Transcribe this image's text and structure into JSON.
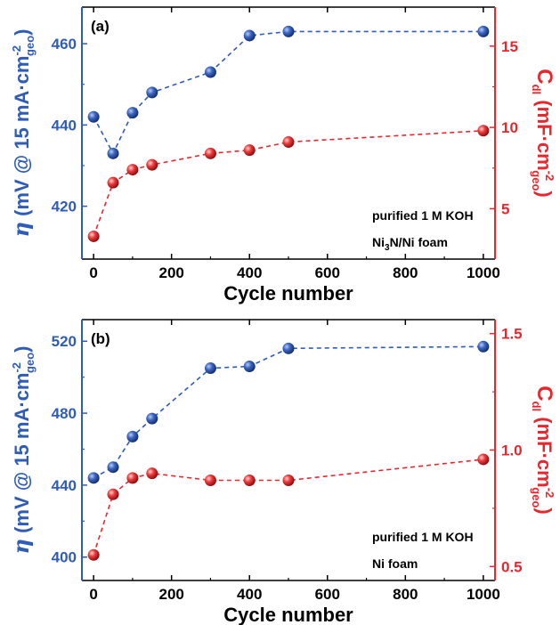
{
  "colors": {
    "left_series": "#2E5CB8",
    "right_series": "#E8262E",
    "axis": "#000000"
  },
  "chart_data": [
    {
      "type": "scatter",
      "panel_label": "(a)",
      "xlabel": "Cycle number",
      "ylabel_left": {
        "symbol": "η",
        "text": " (mV @ 15 mA·cm",
        "sup": "-2",
        "sub": "geo",
        "close": ")"
      },
      "ylabel_right": {
        "base": "C",
        "base_sub": "dl",
        "text": " (mF·cm",
        "sup": "-2",
        "sub": "geo",
        "close": ")"
      },
      "xlim": [
        -30,
        1030
      ],
      "xticks": [
        0,
        200,
        400,
        600,
        800,
        1000
      ],
      "ylim_left": [
        407,
        469
      ],
      "yticks_left": [
        420,
        440,
        460
      ],
      "ylim_right": [
        1.9,
        17.4
      ],
      "yticks_right": [
        5,
        10,
        15
      ],
      "annotations": [
        "purified 1 M KOH",
        "Ni3N/Ni foam"
      ],
      "series": [
        {
          "axis": "left",
          "style": "dashed",
          "x": [
            0,
            50,
            100,
            150,
            300,
            400,
            500,
            1000
          ],
          "y": [
            442,
            433,
            443,
            448,
            453,
            462,
            463,
            463
          ]
        },
        {
          "axis": "right",
          "style": "dashed",
          "x": [
            0,
            50,
            100,
            150,
            300,
            400,
            500,
            1000
          ],
          "y": [
            3.3,
            6.6,
            7.4,
            7.7,
            8.4,
            8.6,
            9.1,
            9.8
          ]
        }
      ]
    },
    {
      "type": "scatter",
      "panel_label": "(b)",
      "xlabel": "Cycle number",
      "ylabel_left": {
        "symbol": "η",
        "text": " (mV @ 15 mA·cm",
        "sup": "-2",
        "sub": "geo",
        "close": ")"
      },
      "ylabel_right": {
        "base": "C",
        "base_sub": "dl",
        "text": " (mF·cm",
        "sup": "-2",
        "sub": "geo",
        "close": ")"
      },
      "xlim": [
        -30,
        1030
      ],
      "xticks": [
        0,
        200,
        400,
        600,
        800,
        1000
      ],
      "ylim_left": [
        387,
        532
      ],
      "yticks_left": [
        400,
        440,
        480,
        520
      ],
      "ylim_right": [
        0.44,
        1.56
      ],
      "yticks_right": [
        0.5,
        1.0,
        1.5
      ],
      "yticks_right_labels": [
        "0.5",
        "1.0",
        "1.5"
      ],
      "annotations": [
        "purified 1 M KOH",
        "Ni foam"
      ],
      "series": [
        {
          "axis": "left",
          "style": "dashed",
          "x": [
            0,
            50,
            100,
            150,
            300,
            400,
            500,
            1000
          ],
          "y": [
            444,
            450,
            467,
            477,
            505,
            506,
            516,
            517
          ]
        },
        {
          "axis": "right",
          "style": "dashed",
          "x": [
            0,
            50,
            100,
            150,
            300,
            400,
            500,
            1000
          ],
          "y": [
            0.55,
            0.81,
            0.88,
            0.9,
            0.87,
            0.87,
            0.87,
            0.96
          ]
        }
      ]
    }
  ]
}
